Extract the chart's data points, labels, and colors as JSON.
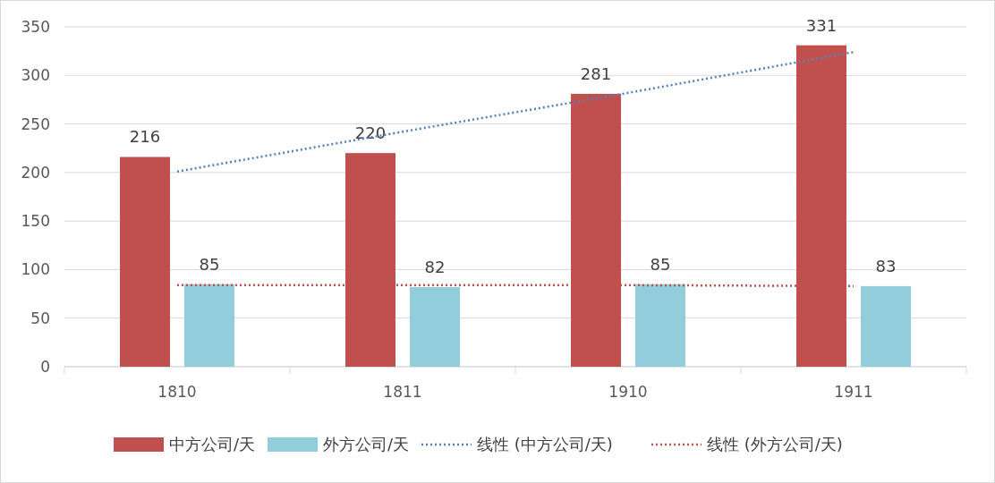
{
  "chart_data": {
    "type": "bar",
    "categories": [
      "1810",
      "1811",
      "1910",
      "1911"
    ],
    "series": [
      {
        "name": "中方公司/天",
        "color": "#c0504d",
        "values": [
          216,
          220,
          281,
          331
        ],
        "value_labels": [
          "216",
          "220",
          "281",
          "331"
        ]
      },
      {
        "name": "外方公司/天",
        "color": "#92cddc",
        "values": [
          85,
          82,
          85,
          83
        ],
        "value_labels": [
          "85",
          "82",
          "85",
          "83"
        ]
      },
      {
        "name": "线性 (中方公司/天)",
        "type": "line",
        "color": "#4f81bd",
        "line_style": "dotted",
        "marker": "none",
        "values": [
          201,
          242,
          282,
          324
        ]
      },
      {
        "name": "线性 (外方公司/天)",
        "type": "line",
        "color": "#c0504d",
        "line_style": "dotted",
        "marker": "none",
        "values": [
          84,
          84,
          84,
          83
        ]
      }
    ],
    "ylim": [
      0,
      350
    ],
    "yticks": [
      0,
      50,
      100,
      150,
      200,
      250,
      300,
      350
    ],
    "grid": "y",
    "legend": "bottom"
  }
}
